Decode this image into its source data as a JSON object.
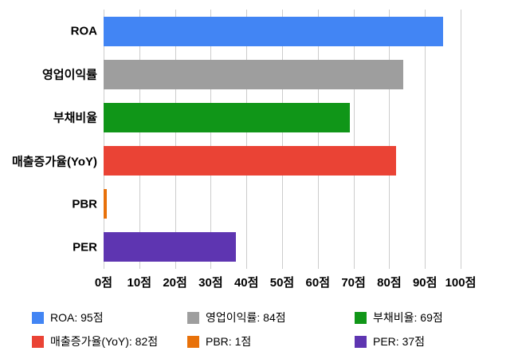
{
  "chart_data": {
    "type": "bar",
    "orientation": "horizontal",
    "title": "",
    "xlabel": "",
    "ylabel": "",
    "xlim": [
      0,
      100
    ],
    "grid": true,
    "categories": [
      "ROA",
      "영업이익률",
      "부채비율",
      "매출증가율(YoY)",
      "PBR",
      "PER"
    ],
    "values": [
      95,
      84,
      69,
      82,
      1,
      37
    ],
    "colors": [
      "#4285F4",
      "#9E9E9E",
      "#109618",
      "#EA4335",
      "#E8710A",
      "#5E35B1"
    ],
    "x_ticks": [
      0,
      10,
      20,
      30,
      40,
      50,
      60,
      70,
      80,
      90,
      100
    ],
    "x_tick_labels": [
      "0점",
      "10점",
      "20점",
      "30점",
      "40점",
      "50점",
      "60점",
      "70점",
      "80점",
      "90점",
      "100점"
    ],
    "legend": {
      "position": "bottom",
      "items": [
        {
          "label": "ROA: 95점",
          "color": "#4285F4"
        },
        {
          "label": "영업이익률: 84점",
          "color": "#9E9E9E"
        },
        {
          "label": "부채비율: 69점",
          "color": "#109618"
        },
        {
          "label": "매출증가율(YoY): 82점",
          "color": "#EA4335"
        },
        {
          "label": "PBR: 1점",
          "color": "#E8710A"
        },
        {
          "label": "PER: 37점",
          "color": "#5E35B1"
        }
      ]
    }
  }
}
